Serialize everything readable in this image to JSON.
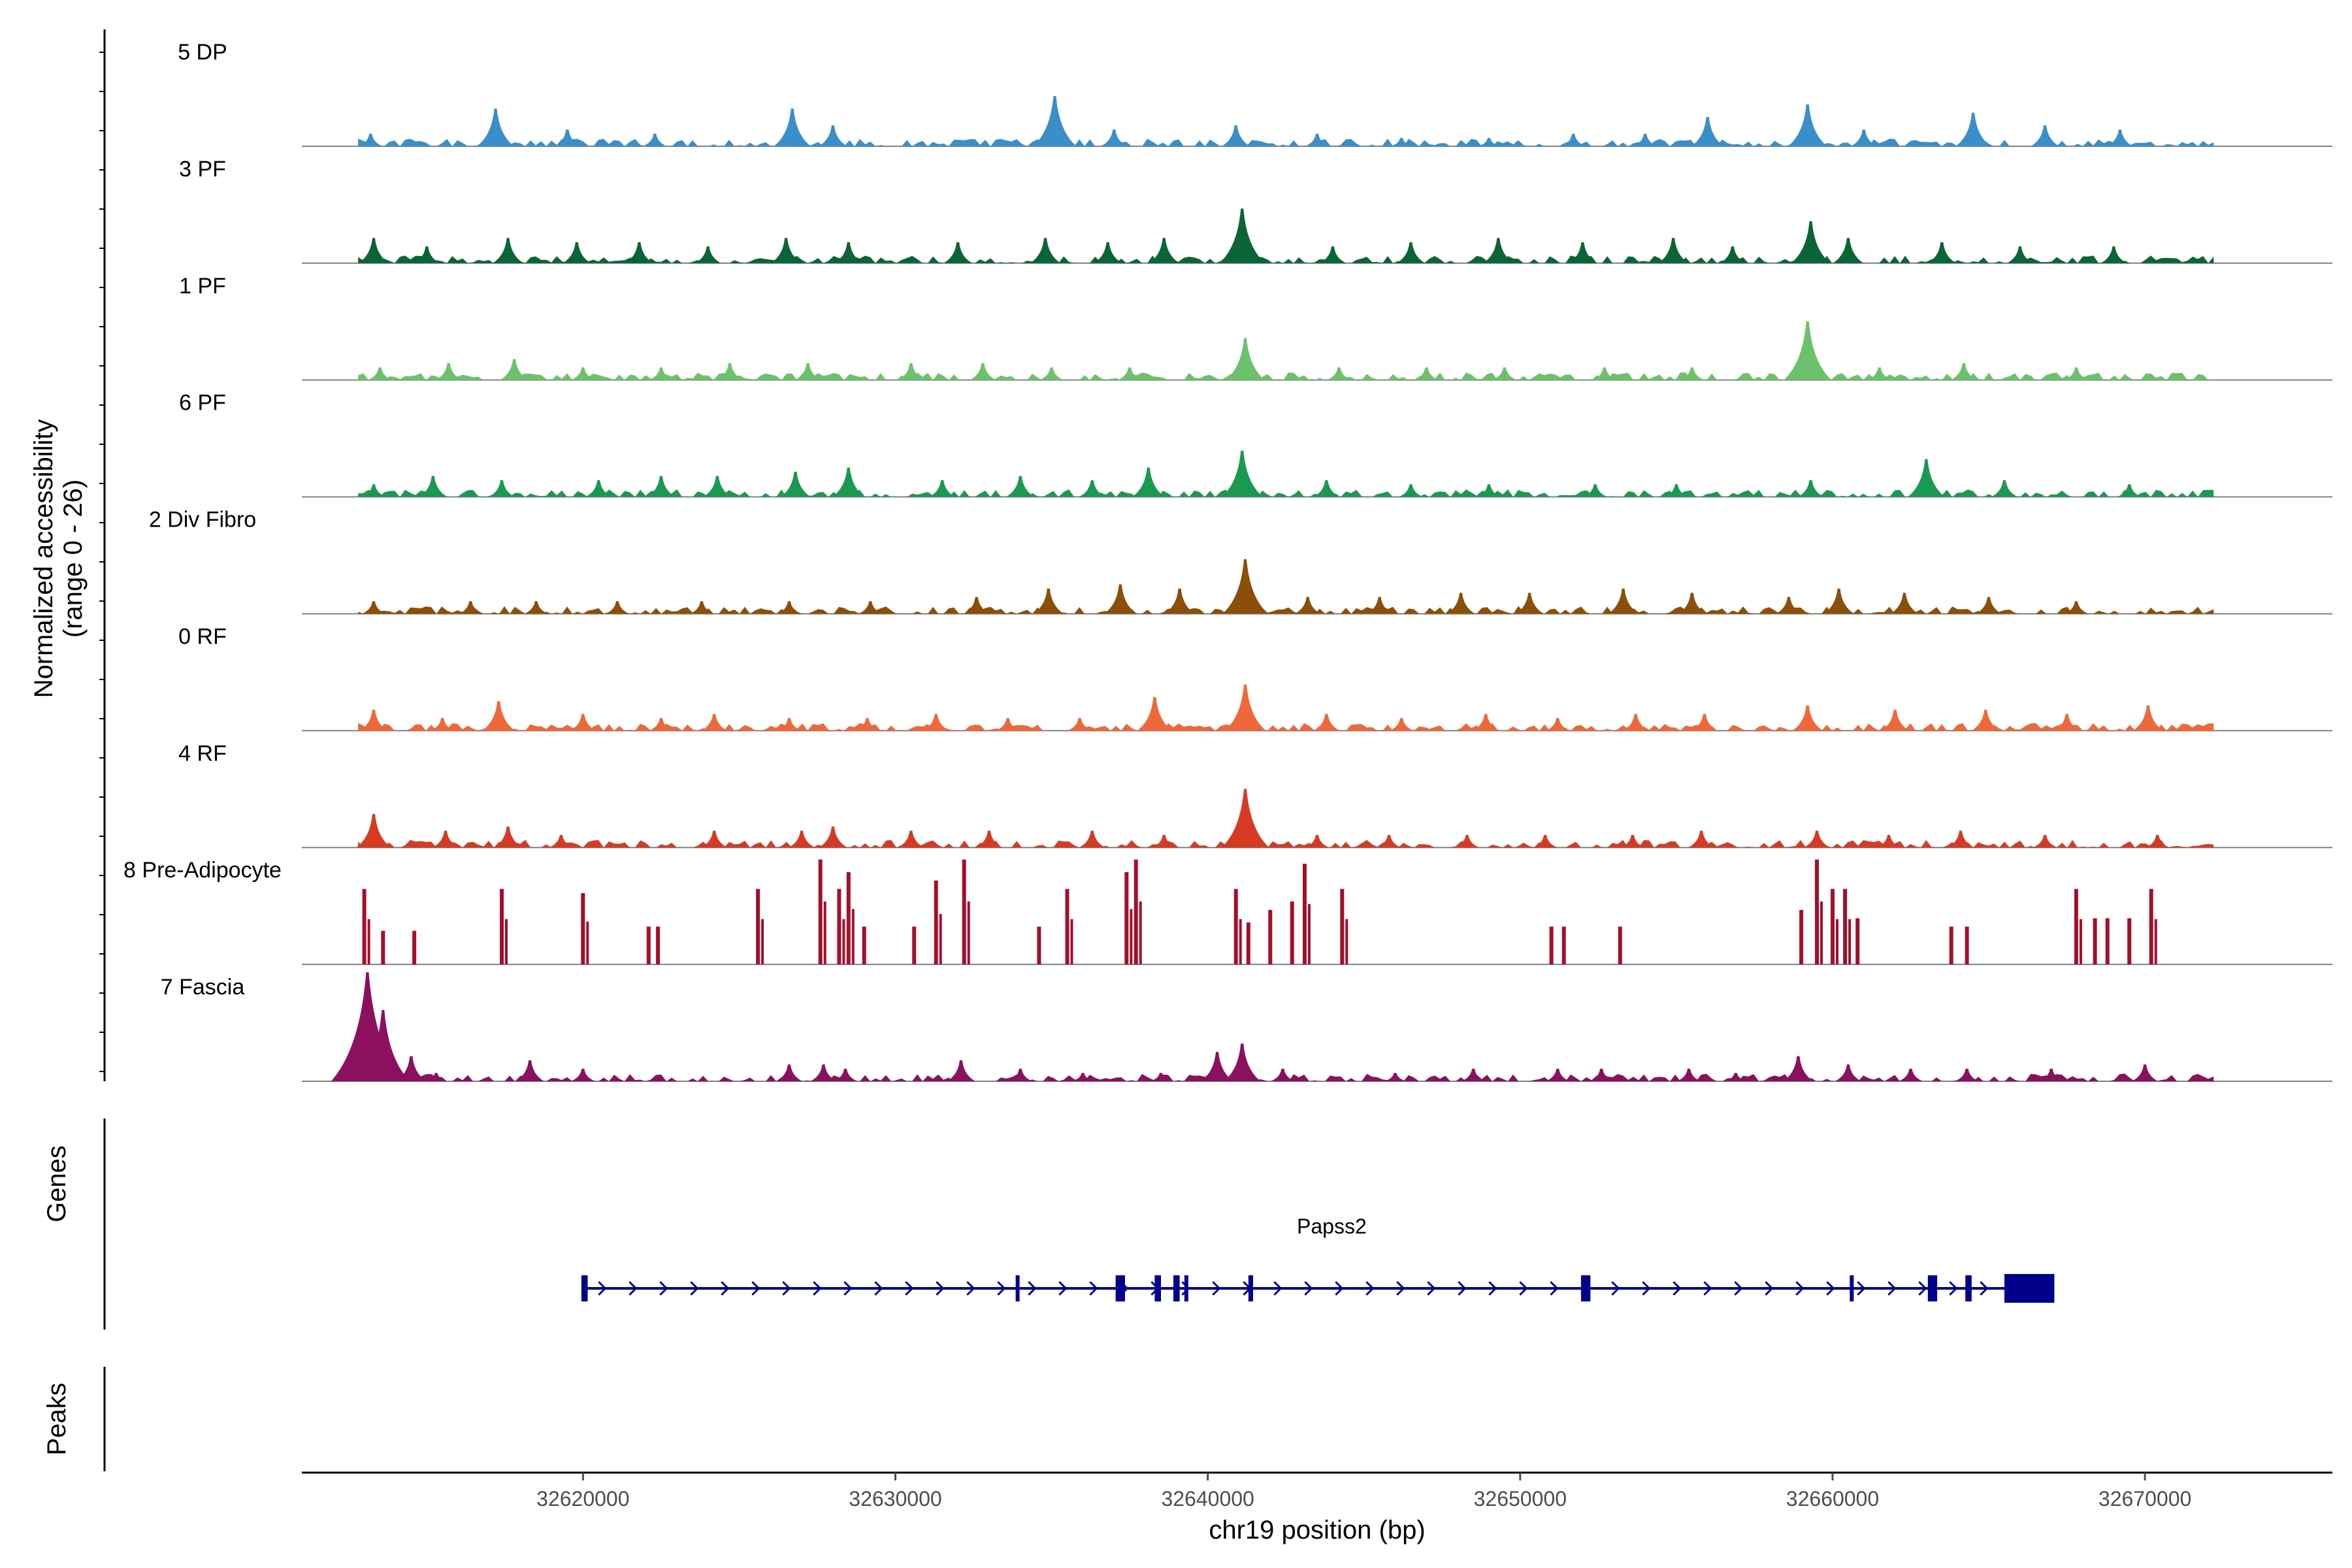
{
  "chart_data": {
    "type": "area",
    "ylabel": "Normalized accessibility\n(range 0 - 26)",
    "xlabel": "chr19 position (bp)",
    "xlim": [
      32611000,
      32676000
    ],
    "ylim": [
      0,
      26
    ],
    "x_ticks": [
      32620000,
      32630000,
      32640000,
      32650000,
      32660000,
      32670000
    ],
    "tracks": [
      {
        "name": "5 DP",
        "color": "#3a8ec9",
        "peaks": [
          [
            32613200,
            3
          ],
          [
            32617200,
            9
          ],
          [
            32619500,
            4
          ],
          [
            32622300,
            3
          ],
          [
            32626700,
            9
          ],
          [
            32628000,
            5
          ],
          [
            32635100,
            12
          ],
          [
            32637000,
            4
          ],
          [
            32640900,
            5
          ],
          [
            32643500,
            3
          ],
          [
            32646200,
            2
          ],
          [
            32649000,
            2
          ],
          [
            32651700,
            3
          ],
          [
            32654000,
            3
          ],
          [
            32656000,
            7
          ],
          [
            32659200,
            10
          ],
          [
            32661000,
            4
          ],
          [
            32664500,
            8
          ],
          [
            32666800,
            5
          ],
          [
            32669200,
            4
          ]
        ]
      },
      {
        "name": "3 PF",
        "color": "#0a6535",
        "peaks": [
          [
            32613300,
            6
          ],
          [
            32615000,
            4
          ],
          [
            32617600,
            6
          ],
          [
            32619800,
            5
          ],
          [
            32621800,
            5
          ],
          [
            32624000,
            4
          ],
          [
            32626500,
            6
          ],
          [
            32628500,
            5
          ],
          [
            32632000,
            5
          ],
          [
            32634800,
            6
          ],
          [
            32636800,
            5
          ],
          [
            32638600,
            6
          ],
          [
            32641100,
            13
          ],
          [
            32644000,
            4
          ],
          [
            32646500,
            5
          ],
          [
            32649300,
            6
          ],
          [
            32652000,
            5
          ],
          [
            32654900,
            6
          ],
          [
            32656800,
            4
          ],
          [
            32659300,
            10
          ],
          [
            32660500,
            6
          ],
          [
            32663500,
            5
          ],
          [
            32666000,
            4
          ],
          [
            32669000,
            4
          ]
        ]
      },
      {
        "name": "1 PF",
        "color": "#6cc26c",
        "peaks": [
          [
            32613500,
            3
          ],
          [
            32615700,
            4
          ],
          [
            32617800,
            5
          ],
          [
            32620000,
            3
          ],
          [
            32622500,
            3
          ],
          [
            32624700,
            4
          ],
          [
            32627200,
            4
          ],
          [
            32630500,
            4
          ],
          [
            32632800,
            4
          ],
          [
            32635000,
            3
          ],
          [
            32637500,
            3
          ],
          [
            32641200,
            10
          ],
          [
            32644200,
            3
          ],
          [
            32647000,
            3
          ],
          [
            32649500,
            3
          ],
          [
            32652700,
            3
          ],
          [
            32655500,
            3
          ],
          [
            32659200,
            14
          ],
          [
            32661500,
            3
          ],
          [
            32664200,
            4
          ],
          [
            32667800,
            3
          ]
        ]
      },
      {
        "name": "6 PF",
        "color": "#1a9950",
        "peaks": [
          [
            32613300,
            3
          ],
          [
            32615200,
            5
          ],
          [
            32617400,
            4
          ],
          [
            32620500,
            4
          ],
          [
            32622500,
            5
          ],
          [
            32624300,
            5
          ],
          [
            32626800,
            6
          ],
          [
            32628500,
            7
          ],
          [
            32631500,
            4
          ],
          [
            32634000,
            5
          ],
          [
            32636300,
            4
          ],
          [
            32638100,
            7
          ],
          [
            32641100,
            11
          ],
          [
            32643800,
            4
          ],
          [
            32646500,
            3
          ],
          [
            32649000,
            3
          ],
          [
            32652400,
            3
          ],
          [
            32655000,
            3
          ],
          [
            32659300,
            4
          ],
          [
            32663000,
            9
          ],
          [
            32665500,
            4
          ],
          [
            32669500,
            3
          ]
        ]
      },
      {
        "name": "2 Div Fibro",
        "color": "#8b4f0a",
        "peaks": [
          [
            32613300,
            3
          ],
          [
            32616400,
            3
          ],
          [
            32618500,
            3
          ],
          [
            32621100,
            3
          ],
          [
            32623800,
            3
          ],
          [
            32626600,
            3
          ],
          [
            32629200,
            3
          ],
          [
            32632600,
            4
          ],
          [
            32634900,
            6
          ],
          [
            32637200,
            7
          ],
          [
            32639100,
            6
          ],
          [
            32641200,
            13
          ],
          [
            32643200,
            4
          ],
          [
            32645500,
            4
          ],
          [
            32648100,
            5
          ],
          [
            32650300,
            5
          ],
          [
            32653300,
            6
          ],
          [
            32655500,
            5
          ],
          [
            32658600,
            4
          ],
          [
            32660200,
            6
          ],
          [
            32662300,
            5
          ],
          [
            32665000,
            4
          ],
          [
            32667800,
            3
          ]
        ]
      },
      {
        "name": "0 RF",
        "color": "#f0673a",
        "peaks": [
          [
            32613300,
            5
          ],
          [
            32615500,
            3
          ],
          [
            32617300,
            7
          ],
          [
            32620000,
            4
          ],
          [
            32622500,
            3
          ],
          [
            32624200,
            4
          ],
          [
            32626600,
            3
          ],
          [
            32629100,
            3
          ],
          [
            32631300,
            4
          ],
          [
            32633600,
            3
          ],
          [
            32635900,
            3
          ],
          [
            32638300,
            8
          ],
          [
            32641200,
            11
          ],
          [
            32643800,
            4
          ],
          [
            32646200,
            3
          ],
          [
            32648900,
            4
          ],
          [
            32651200,
            3
          ],
          [
            32653700,
            4
          ],
          [
            32655900,
            4
          ],
          [
            32659200,
            6
          ],
          [
            32662000,
            5
          ],
          [
            32664900,
            5
          ],
          [
            32667500,
            4
          ],
          [
            32670100,
            6
          ]
        ]
      },
      {
        "name": "4 RF",
        "color": "#d73a22",
        "peaks": [
          [
            32613300,
            8
          ],
          [
            32615600,
            4
          ],
          [
            32617600,
            5
          ],
          [
            32619300,
            3
          ],
          [
            32624200,
            4
          ],
          [
            32627000,
            4
          ],
          [
            32628000,
            5
          ],
          [
            32630500,
            4
          ],
          [
            32633000,
            4
          ],
          [
            32636300,
            4
          ],
          [
            32638600,
            3
          ],
          [
            32641200,
            14
          ],
          [
            32643500,
            3
          ],
          [
            32645800,
            3
          ],
          [
            32648300,
            3
          ],
          [
            32650800,
            3
          ],
          [
            32653600,
            3
          ],
          [
            32655800,
            4
          ],
          [
            32659500,
            4
          ],
          [
            32661800,
            3
          ],
          [
            32664100,
            4
          ],
          [
            32666800,
            3
          ],
          [
            32670400,
            3
          ]
        ]
      },
      {
        "name": "8 Pre-Adipocyte",
        "color": "#a30f2c",
        "peaks": [
          [
            32613000,
            18
          ],
          [
            32613600,
            8
          ],
          [
            32614600,
            8
          ],
          [
            32617400,
            18
          ],
          [
            32620000,
            17
          ],
          [
            32622100,
            9
          ],
          [
            32622400,
            9
          ],
          [
            32625600,
            18
          ],
          [
            32627600,
            25
          ],
          [
            32628200,
            18
          ],
          [
            32628500,
            22
          ],
          [
            32629000,
            9
          ],
          [
            32630600,
            9
          ],
          [
            32631300,
            20
          ],
          [
            32632200,
            25
          ],
          [
            32634600,
            9
          ],
          [
            32635500,
            18
          ],
          [
            32637400,
            22
          ],
          [
            32637700,
            25
          ],
          [
            32640900,
            18
          ],
          [
            32641300,
            10
          ],
          [
            32642000,
            13
          ],
          [
            32642700,
            15
          ],
          [
            32643100,
            24
          ],
          [
            32644300,
            18
          ],
          [
            32651000,
            9
          ],
          [
            32651400,
            9
          ],
          [
            32653200,
            9
          ],
          [
            32659000,
            13
          ],
          [
            32659500,
            25
          ],
          [
            32660000,
            18
          ],
          [
            32660400,
            18
          ],
          [
            32660800,
            11
          ],
          [
            32663800,
            9
          ],
          [
            32664300,
            9
          ],
          [
            32667800,
            18
          ],
          [
            32668400,
            11
          ],
          [
            32668800,
            11
          ],
          [
            32669500,
            11
          ],
          [
            32670200,
            18
          ]
        ]
      },
      {
        "name": "7 Fascia",
        "color": "#8b1060",
        "peaks": [
          [
            32613100,
            26
          ],
          [
            32613600,
            17
          ],
          [
            32614500,
            6
          ],
          [
            32615300,
            2
          ],
          [
            32618300,
            5
          ],
          [
            32620000,
            3
          ],
          [
            32626600,
            4
          ],
          [
            32627700,
            4
          ],
          [
            32628400,
            3
          ],
          [
            32632100,
            5
          ],
          [
            32634000,
            3
          ],
          [
            32636000,
            2
          ],
          [
            32638500,
            2
          ],
          [
            32640300,
            7
          ],
          [
            32641100,
            9
          ],
          [
            32642400,
            3
          ],
          [
            32646000,
            2
          ],
          [
            32648500,
            3
          ],
          [
            32651200,
            3
          ],
          [
            32652600,
            3
          ],
          [
            32655400,
            3
          ],
          [
            32656900,
            2
          ],
          [
            32658900,
            6
          ],
          [
            32660500,
            4
          ],
          [
            32662500,
            3
          ],
          [
            32664300,
            3
          ],
          [
            32667000,
            3
          ],
          [
            32670000,
            4
          ]
        ]
      }
    ],
    "genes": [
      {
        "name": "Papss2",
        "strand": "+",
        "start": 32620000,
        "end": 32667100,
        "exons": [
          [
            32619950,
            32620150
          ],
          [
            32633850,
            32633950
          ],
          [
            32637050,
            32637350
          ],
          [
            32638300,
            32638500
          ],
          [
            32638900,
            32639100
          ],
          [
            32639250,
            32639350
          ],
          [
            32641300,
            32641450
          ],
          [
            32651950,
            32652250
          ],
          [
            32660550,
            32660650
          ],
          [
            32663050,
            32663350
          ],
          [
            32664250,
            32664450
          ],
          [
            32665500,
            32667100
          ]
        ]
      }
    ],
    "peaks_track": []
  },
  "panel_labels": {
    "genes": "Genes",
    "peaks": "Peaks"
  }
}
